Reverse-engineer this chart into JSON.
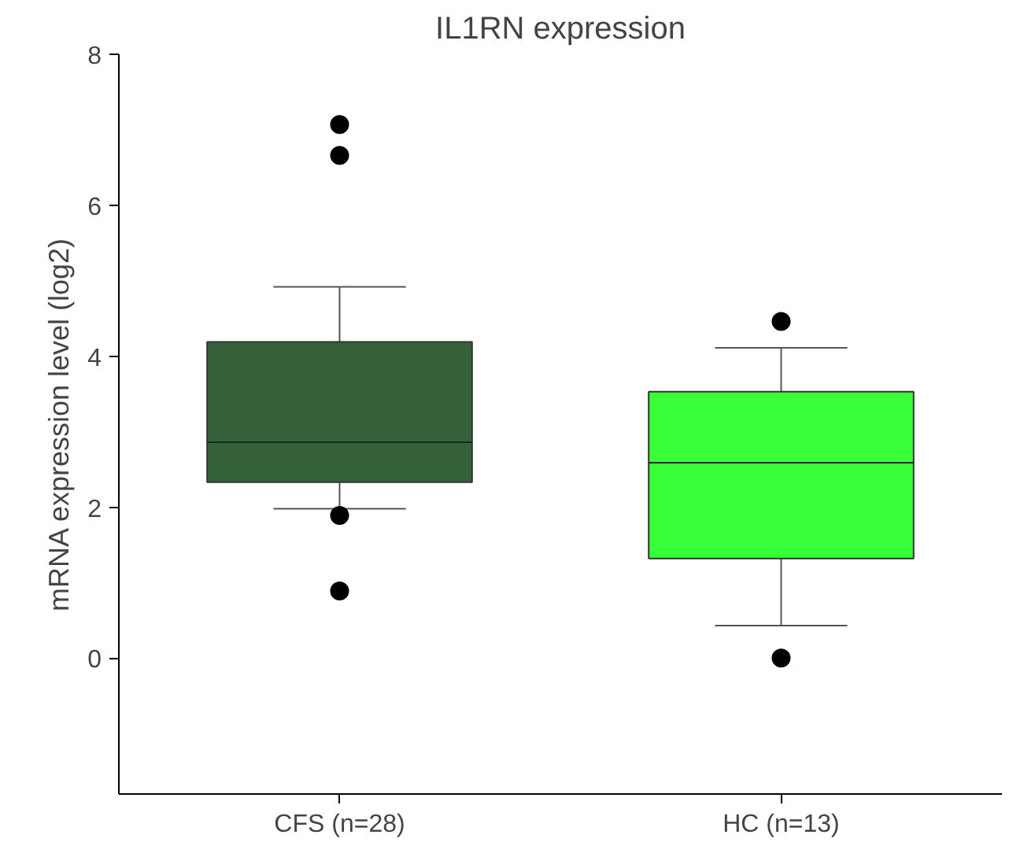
{
  "chart_data": {
    "type": "box",
    "title": "IL1RN expression",
    "ylabel": "mRNA expression level (log2)",
    "categories": [
      "CFS (n=28)",
      "HC (n=13)"
    ],
    "colors": [
      "#36623a",
      "#39ff39"
    ],
    "boxes": [
      {
        "low": 1.98,
        "q1": 2.33,
        "median": 2.86,
        "q3": 4.19,
        "high": 4.92,
        "outliers": [
          7.07,
          6.66,
          1.89,
          0.89
        ]
      },
      {
        "low": 0.43,
        "q1": 1.32,
        "median": 2.59,
        "q3": 3.53,
        "high": 4.11,
        "outliers": [
          4.46,
          0.0
        ]
      }
    ],
    "ylim": [
      -1.8,
      8
    ],
    "yticks": [
      0,
      2,
      4,
      6,
      8
    ],
    "grid": false
  }
}
